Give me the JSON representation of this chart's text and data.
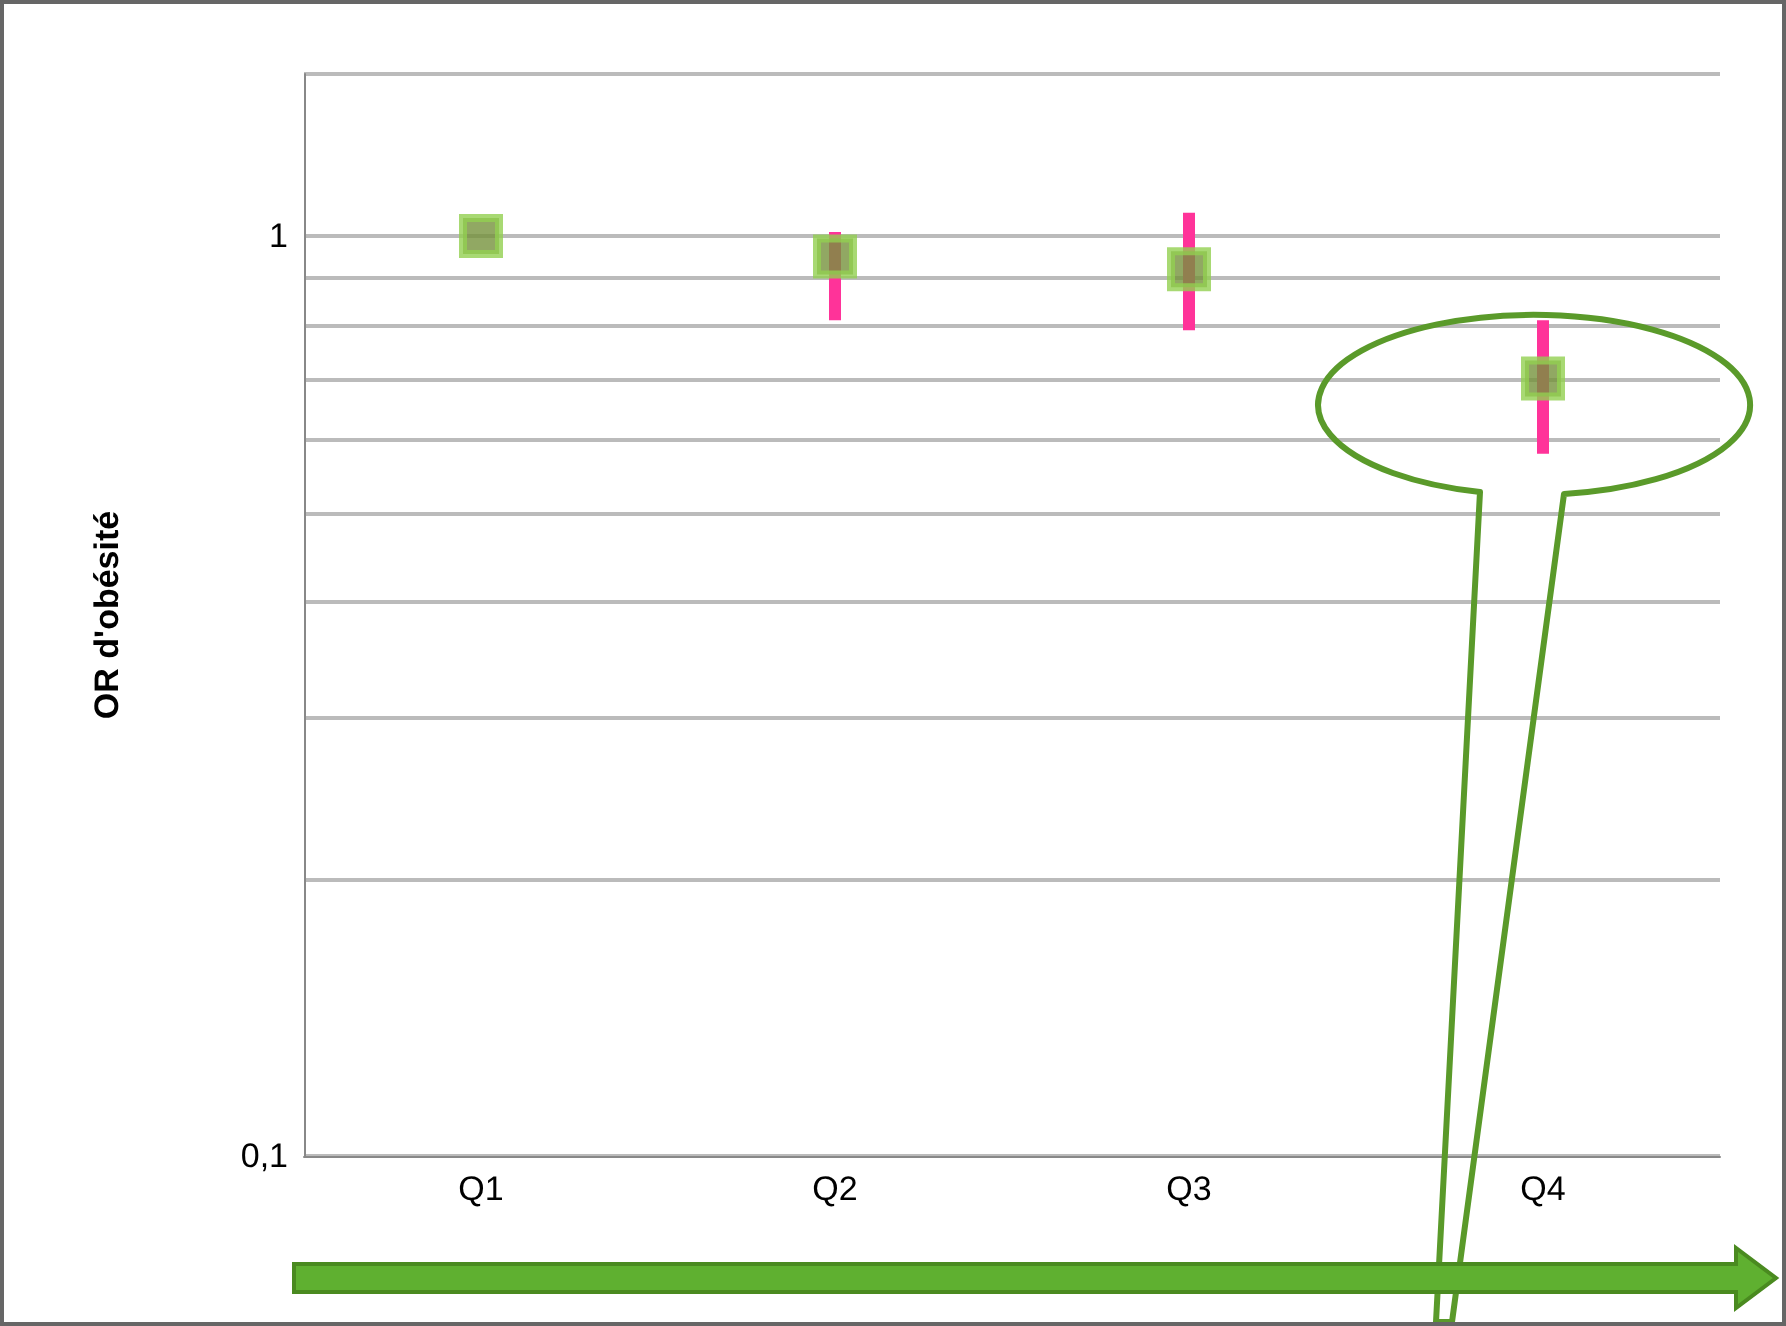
{
  "chart_data": {
    "type": "scatter",
    "ylabel": "OR d'obésité",
    "categories": [
      "Q1",
      "Q2",
      "Q3",
      "Q4"
    ],
    "series": [
      {
        "color": "#92d050",
        "values": [
          1,
          0.95,
          0.92,
          0.7
        ],
        "errors": [
          null,
          [
            0.81,
            1.01
          ],
          [
            0.79,
            1.06
          ],
          [
            0.58,
            0.81
          ]
        ]
      }
    ],
    "log": true,
    "ylim": [
      0.1,
      1.5
    ],
    "yticks": [
      {
        "value": 0.1,
        "label": "0,1"
      },
      {
        "value": 0.2,
        "label": null
      },
      {
        "value": 0.3,
        "label": null
      },
      {
        "value": 0.4,
        "label": null
      },
      {
        "value": 0.5,
        "label": null
      },
      {
        "value": 0.6,
        "label": null
      },
      {
        "value": 0.7,
        "label": null
      },
      {
        "value": 0.8,
        "label": null
      },
      {
        "value": 0.9,
        "label": null
      },
      1,
      {
        "value": 1.5,
        "label": null
      }
    ],
    "grid": "y",
    "marker": "square"
  }
}
